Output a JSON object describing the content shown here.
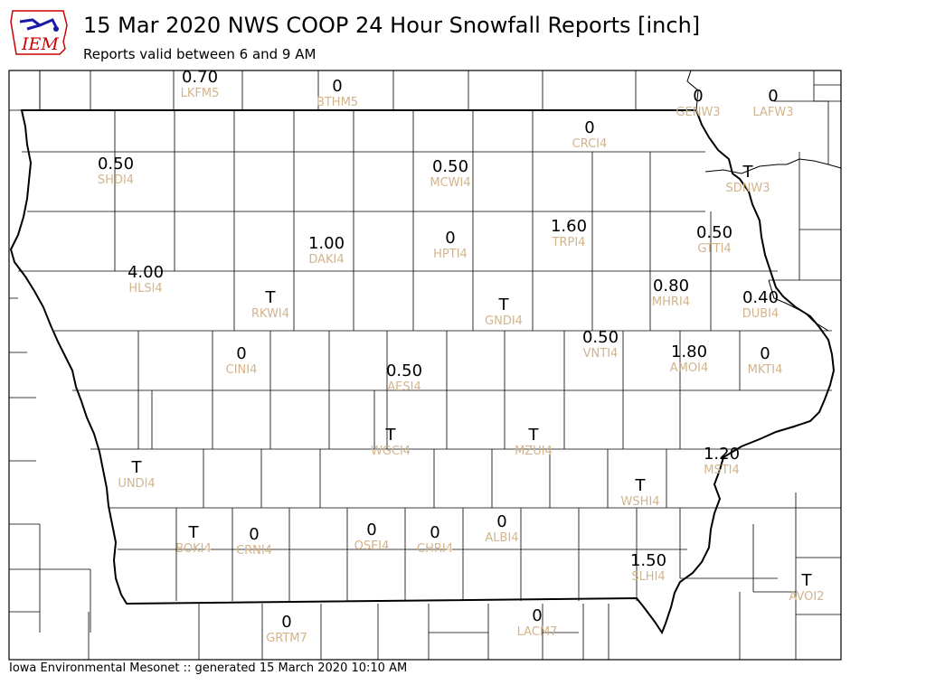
{
  "header": {
    "title": "15 Mar 2020 NWS COOP 24 Hour Snowfall Reports [inch]",
    "subtitle": "Reports valid between 6 and 9 AM",
    "logo_text": "IEM"
  },
  "footer": {
    "text": "Iowa Environmental Mesonet :: generated 15 March 2020 10:10 AM"
  },
  "colors": {
    "value": "#000000",
    "station_id": "#d2b48c",
    "county_line": "#000000",
    "logo_red": "#cc0000",
    "logo_blue": "#1a1aa6"
  },
  "stations": [
    {
      "id": "LKFM5",
      "value": "0.70"
    },
    {
      "id": "BTHM5",
      "value": "0"
    },
    {
      "id": "GENW3",
      "value": "0"
    },
    {
      "id": "LAFW3",
      "value": "0"
    },
    {
      "id": "CRCI4",
      "value": "0"
    },
    {
      "id": "SHDI4",
      "value": "0.50"
    },
    {
      "id": "MCWI4",
      "value": "0.50"
    },
    {
      "id": "SDNW3",
      "value": "T"
    },
    {
      "id": "TRPI4",
      "value": "1.60"
    },
    {
      "id": "GTTI4",
      "value": "0.50"
    },
    {
      "id": "DAKI4",
      "value": "1.00"
    },
    {
      "id": "HPTI4",
      "value": "0"
    },
    {
      "id": "HLSI4",
      "value": "4.00"
    },
    {
      "id": "RKWI4",
      "value": "T"
    },
    {
      "id": "GNDI4",
      "value": "T"
    },
    {
      "id": "MHRI4",
      "value": "0.80"
    },
    {
      "id": "DUBI4",
      "value": "0.40"
    },
    {
      "id": "VNTI4",
      "value": "0.50"
    },
    {
      "id": "CINI4",
      "value": "0"
    },
    {
      "id": "AMOI4",
      "value": "1.80"
    },
    {
      "id": "MKTI4",
      "value": "0"
    },
    {
      "id": "AESI4",
      "value": "0.50"
    },
    {
      "id": "WGCI4",
      "value": "T"
    },
    {
      "id": "MZUI4",
      "value": "T"
    },
    {
      "id": "MSTI4",
      "value": "1.20"
    },
    {
      "id": "UNDI4",
      "value": "T"
    },
    {
      "id": "WSHI4",
      "value": "T"
    },
    {
      "id": "BOKI4",
      "value": "T"
    },
    {
      "id": "CRNI4",
      "value": "0"
    },
    {
      "id": "OSEI4",
      "value": "0"
    },
    {
      "id": "CHRI4",
      "value": "0"
    },
    {
      "id": "ALBI4",
      "value": "0"
    },
    {
      "id": "SLHI4",
      "value": "1.50"
    },
    {
      "id": "AVOI2",
      "value": "T"
    },
    {
      "id": "GRTM7",
      "value": "0"
    },
    {
      "id": "LACM7",
      "value": "0"
    }
  ]
}
